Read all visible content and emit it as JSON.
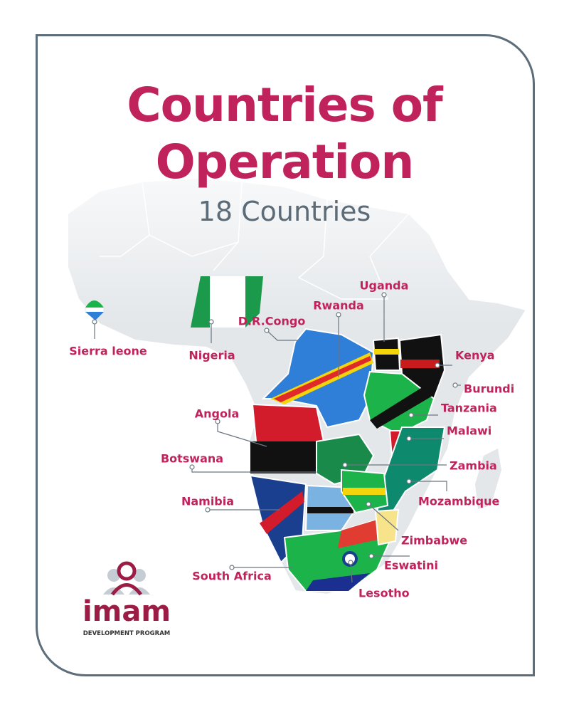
{
  "title": "Countries of Operation",
  "subtitle": "18 Countries",
  "countries": [
    "Sierra leone",
    "Nigeria",
    "D.R.Congo",
    "Rwanda",
    "Uganda",
    "Kenya",
    "Burundi",
    "Tanzania",
    "Malawi",
    "Angola",
    "Botswana",
    "Zambia",
    "Namibia",
    "Mozambique",
    "Zimbabwe",
    "Eswatini",
    "South Africa",
    "Lesotho"
  ],
  "logo": {
    "name": "imam",
    "tagline": "DEVELOPMENT PROGRAM"
  }
}
